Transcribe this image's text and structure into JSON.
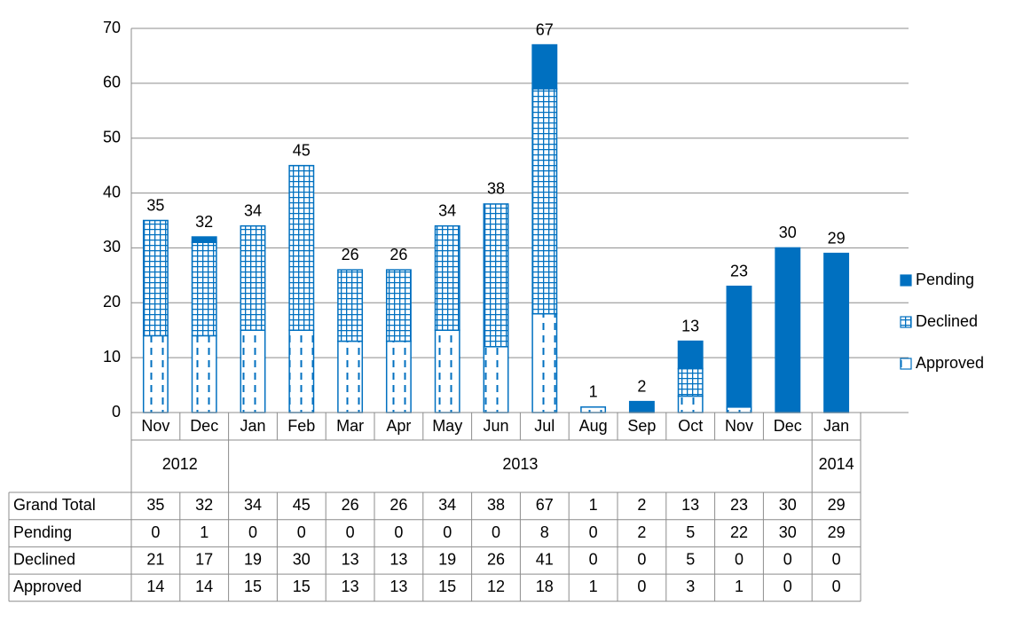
{
  "chart_data": {
    "type": "bar",
    "stacked": true,
    "categories": [
      "Nov",
      "Dec",
      "Jan",
      "Feb",
      "Mar",
      "Apr",
      "May",
      "Jun",
      "Jul",
      "Aug",
      "Sep",
      "Oct",
      "Nov",
      "Dec",
      "Jan"
    ],
    "years": [
      "2012",
      null,
      "2013",
      null,
      null,
      null,
      null,
      null,
      null,
      null,
      null,
      null,
      null,
      null,
      "2014"
    ],
    "series": [
      {
        "name": "Pending",
        "color": "#0070c0",
        "pattern": "solid",
        "values": [
          0,
          1,
          0,
          0,
          0,
          0,
          0,
          0,
          8,
          0,
          2,
          5,
          22,
          30,
          29
        ]
      },
      {
        "name": "Declined",
        "color": "#0070c0",
        "pattern": "grid",
        "values": [
          21,
          17,
          19,
          30,
          13,
          13,
          19,
          26,
          41,
          0,
          0,
          5,
          0,
          0,
          0
        ]
      },
      {
        "name": "Approved",
        "color": "#0070c0",
        "pattern": "dashed",
        "values": [
          14,
          14,
          15,
          15,
          13,
          13,
          15,
          12,
          18,
          1,
          0,
          3,
          1,
          0,
          0
        ]
      }
    ],
    "totals": {
      "name": "Grand Total",
      "values": [
        35,
        32,
        34,
        45,
        26,
        26,
        34,
        38,
        67,
        1,
        2,
        13,
        23,
        30,
        29
      ]
    },
    "ylim": [
      0,
      70
    ],
    "yticks": [
      0,
      10,
      20,
      30,
      40,
      50,
      60,
      70
    ],
    "grid": true,
    "legend": "right"
  }
}
